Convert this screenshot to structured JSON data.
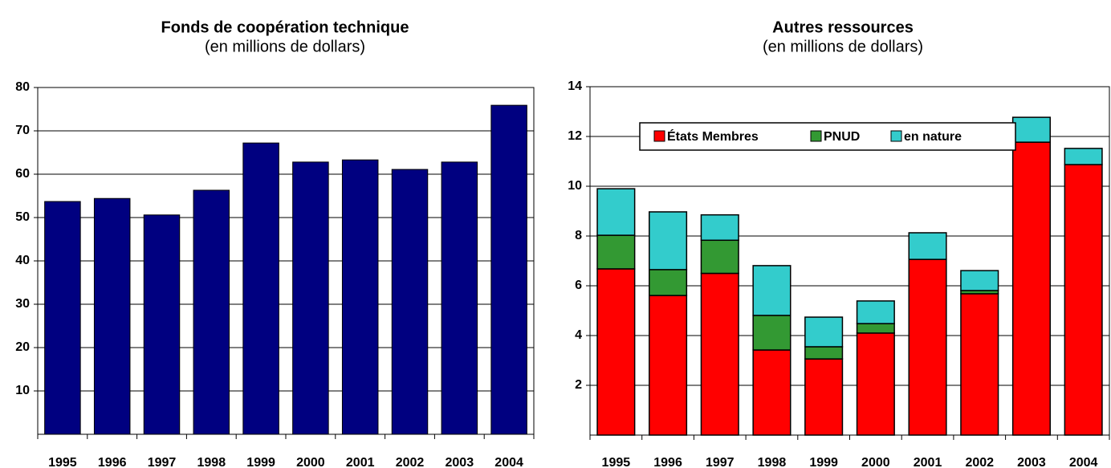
{
  "chart_data": [
    {
      "type": "bar",
      "title": "Fonds de coopération technique",
      "subtitle": "(en millions de dollars)",
      "categories": [
        "1995",
        "1996",
        "1997",
        "1998",
        "1999",
        "2000",
        "2001",
        "2002",
        "2003",
        "2004"
      ],
      "values": [
        53.7,
        54.4,
        50.6,
        56.3,
        67.2,
        62.8,
        63.3,
        61.1,
        62.8,
        75.9
      ],
      "color": "#000080",
      "ylim": [
        0,
        80
      ],
      "yticks": [
        10,
        20,
        30,
        40,
        50,
        60,
        70,
        80
      ],
      "grid": true
    },
    {
      "type": "stacked_bar",
      "title": "Autres ressources",
      "subtitle": "(en millions de dollars)",
      "categories": [
        "1995",
        "1996",
        "1997",
        "1998",
        "1999",
        "2000",
        "2001",
        "2002",
        "2003",
        "2004"
      ],
      "series": [
        {
          "name": "États Membres",
          "color": "#ff0000",
          "values": [
            6.68,
            5.61,
            6.5,
            3.42,
            3.06,
            4.1,
            7.06,
            5.68,
            11.77,
            10.87
          ]
        },
        {
          "name": "PNUD",
          "color": "#339933",
          "values": [
            1.35,
            1.04,
            1.33,
            1.39,
            0.49,
            0.38,
            0,
            0.13,
            0,
            0
          ]
        },
        {
          "name": "en nature",
          "color": "#33cccc",
          "values": [
            1.87,
            2.32,
            1.02,
            2.0,
            1.19,
            0.91,
            1.07,
            0.8,
            1.0,
            0.65
          ]
        }
      ],
      "ylim": [
        0,
        14
      ],
      "yticks": [
        2,
        4,
        6,
        8,
        10,
        12,
        14
      ],
      "grid": true
    }
  ]
}
